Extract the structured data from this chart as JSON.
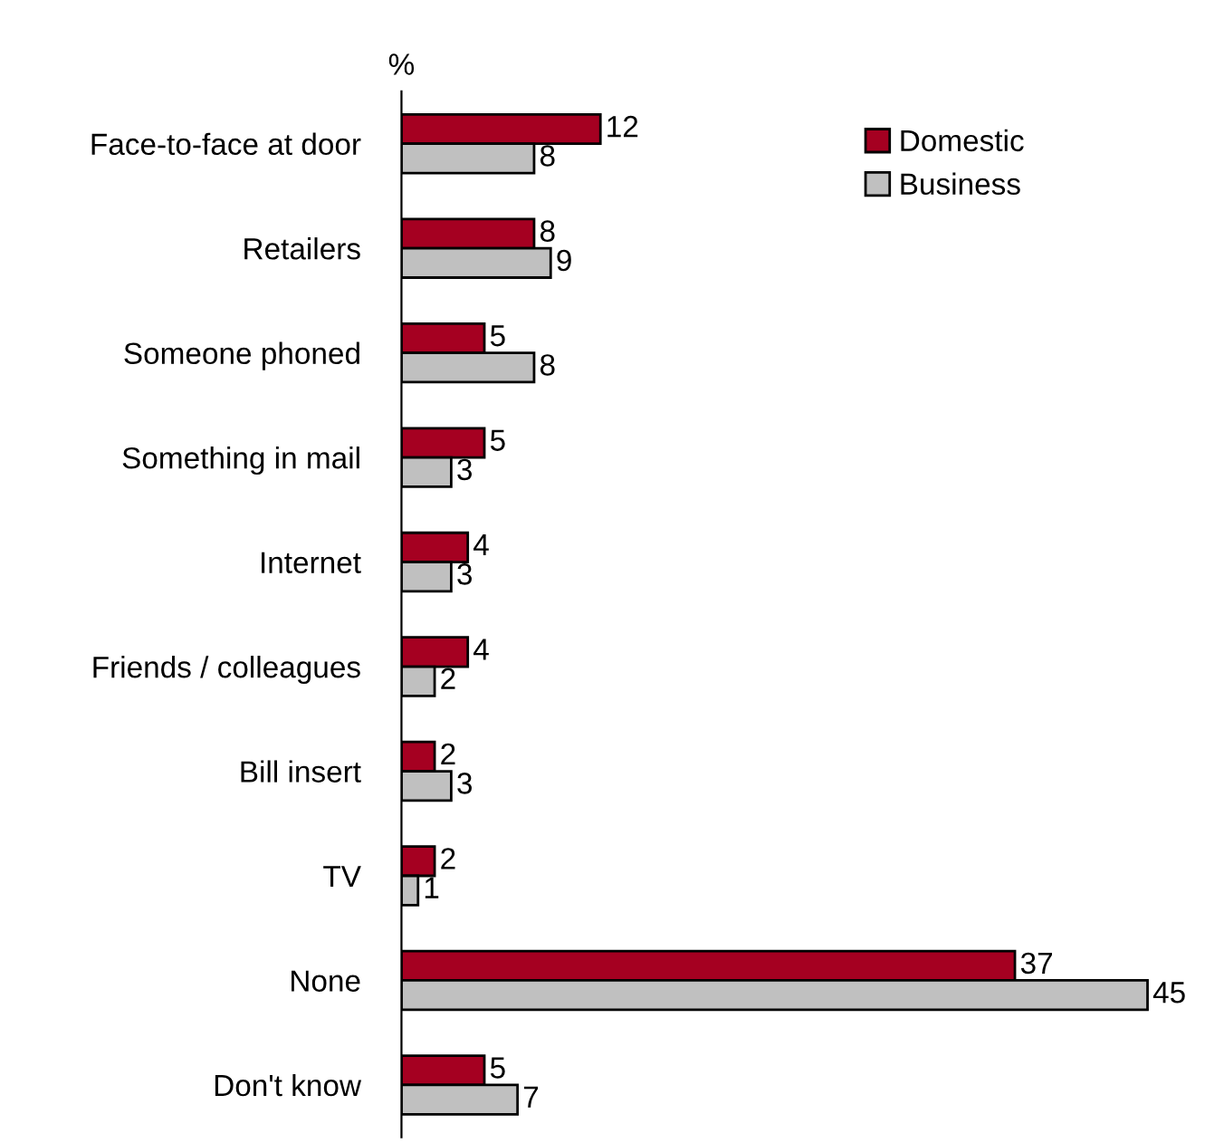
{
  "chart_data": {
    "type": "bar",
    "orientation": "horizontal",
    "xlabel": "%",
    "categories": [
      "Face-to-face at door",
      "Retailers",
      "Someone phoned",
      "Something in mail",
      "Internet",
      "Friends / colleagues",
      "Bill insert",
      "TV",
      "None",
      "Don't know"
    ],
    "series": [
      {
        "name": "Domestic",
        "color": "#a50021",
        "values": [
          12,
          8,
          5,
          5,
          4,
          4,
          2,
          2,
          37,
          5
        ]
      },
      {
        "name": "Business",
        "color": "#c0c0c0",
        "values": [
          8,
          9,
          8,
          3,
          3,
          2,
          3,
          1,
          45,
          7
        ]
      }
    ],
    "data_labels": true,
    "legend": "top right",
    "grid": false
  }
}
